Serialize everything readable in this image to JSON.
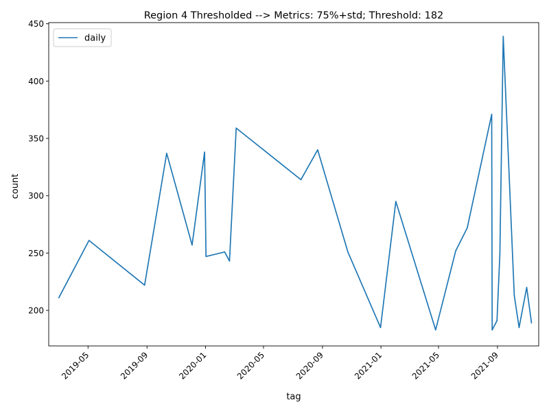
{
  "chart_data": {
    "type": "line",
    "title": "Region 4 Thresholded --> Metrics: 75%+std; Threshold: 182",
    "xlabel": "tag",
    "ylabel": "count",
    "x_type": "date",
    "xlim": [
      "2019-02-08",
      "2021-11-26"
    ],
    "ylim": [
      169,
      451
    ],
    "x_ticks": [
      "2019-05-01",
      "2019-09-01",
      "2020-01-01",
      "2020-05-01",
      "2020-09-01",
      "2021-01-01",
      "2021-05-01",
      "2021-09-01"
    ],
    "x_tick_labels": [
      "2019-05",
      "2019-09",
      "2020-01",
      "2020-05",
      "2020-09",
      "2021-01",
      "2021-05",
      "2021-09"
    ],
    "y_ticks": [
      200,
      250,
      300,
      350,
      400,
      450
    ],
    "y_tick_labels": [
      "200",
      "250",
      "300",
      "350",
      "400",
      "450"
    ],
    "grid": false,
    "legend": "top-left",
    "color": "#1f77b4",
    "series": [
      {
        "name": "daily",
        "x": [
          "2019-03-01",
          "2019-05-03",
          "2019-08-27",
          "2019-10-12",
          "2019-12-04",
          "2019-12-30",
          "2020-01-02",
          "2020-02-10",
          "2020-02-20",
          "2020-03-05",
          "2020-07-18",
          "2020-08-22",
          "2020-10-24",
          "2020-12-31",
          "2021-02-01",
          "2021-04-25",
          "2021-06-06",
          "2021-06-30",
          "2021-08-20",
          "2021-08-21",
          "2021-08-31",
          "2021-09-06",
          "2021-09-13",
          "2021-10-06",
          "2021-10-16",
          "2021-11-01",
          "2021-11-11"
        ],
        "y": [
          211,
          261,
          222,
          337,
          257,
          338,
          247,
          251,
          243,
          359,
          314,
          340,
          251,
          185,
          295,
          183,
          252,
          272,
          371,
          183,
          191,
          249,
          439,
          213,
          185,
          220,
          189
        ]
      }
    ]
  }
}
